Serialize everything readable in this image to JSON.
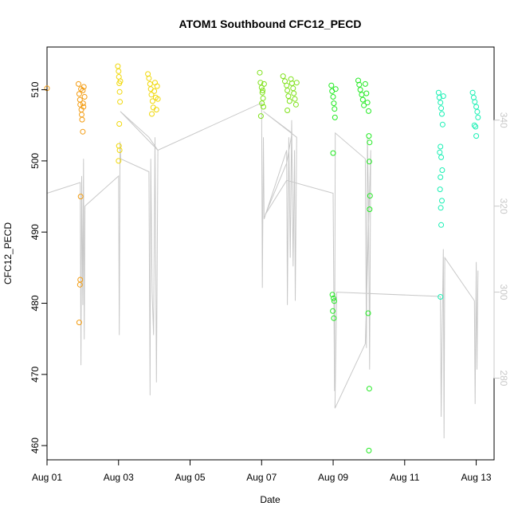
{
  "chart_data": {
    "type": "scatter",
    "title": "ATOM1 Southbound CFC12_PECD",
    "xlabel": "Date",
    "ylabel": "CFC12_PECD",
    "xlim": [
      0,
      12.5
    ],
    "ylim": [
      458,
      516
    ],
    "y_ticks": [
      460,
      470,
      480,
      490,
      500,
      510
    ],
    "x_ticks": [
      {
        "v": 0,
        "label": "Aug 01"
      },
      {
        "v": 2,
        "label": "Aug 03"
      },
      {
        "v": 4,
        "label": "Aug 05"
      },
      {
        "v": 6,
        "label": "Aug 07"
      },
      {
        "v": 8,
        "label": "Aug 09"
      },
      {
        "v": 10,
        "label": "Aug 11"
      },
      {
        "v": 12,
        "label": "Aug 13"
      }
    ],
    "right_axis": {
      "ylim": [
        261,
        357
      ],
      "ticks": [
        280,
        300,
        320,
        340
      ],
      "color": "#c8c8c8"
    },
    "grid": false,
    "legend": "none",
    "series": [
      {
        "color": "#f39c12",
        "points": [
          [
            0.0,
            510.2
          ],
          [
            0.88,
            510.8
          ],
          [
            0.9,
            509.4
          ],
          [
            0.92,
            508.6
          ],
          [
            0.93,
            507.9
          ],
          [
            0.95,
            510.1
          ],
          [
            0.96,
            507.2
          ],
          [
            0.97,
            506.5
          ],
          [
            0.98,
            505.8
          ],
          [
            1.0,
            509.9
          ],
          [
            1.01,
            508.1
          ],
          [
            1.02,
            507.6
          ],
          [
            1.03,
            510.4
          ],
          [
            1.05,
            509.0
          ],
          [
            0.94,
            495.0
          ],
          [
            0.93,
            483.3
          ],
          [
            0.92,
            482.6
          ],
          [
            0.9,
            477.3
          ],
          [
            1.0,
            504.1
          ]
        ]
      },
      {
        "color": "#f1d80a",
        "points": [
          [
            1.98,
            513.3
          ],
          [
            2.0,
            512.6
          ],
          [
            2.01,
            511.8
          ],
          [
            2.02,
            510.9
          ],
          [
            2.03,
            509.7
          ],
          [
            2.04,
            508.3
          ],
          [
            2.05,
            511.2
          ],
          [
            2.02,
            505.2
          ],
          [
            2.01,
            502.1
          ],
          [
            2.03,
            501.5
          ],
          [
            2.0,
            500.0
          ],
          [
            2.82,
            512.2
          ],
          [
            2.85,
            511.6
          ],
          [
            2.88,
            510.8
          ],
          [
            2.9,
            510.1
          ],
          [
            2.92,
            509.3
          ],
          [
            2.95,
            508.4
          ],
          [
            2.97,
            507.5
          ],
          [
            3.0,
            509.8
          ],
          [
            3.02,
            511.0
          ],
          [
            3.04,
            508.9
          ],
          [
            3.06,
            507.2
          ],
          [
            3.08,
            510.5
          ],
          [
            3.1,
            508.7
          ],
          [
            2.93,
            506.6
          ]
        ]
      },
      {
        "color": "#7fe21a",
        "points": [
          [
            5.95,
            512.4
          ],
          [
            5.97,
            511.0
          ],
          [
            6.0,
            510.3
          ],
          [
            6.02,
            509.6
          ],
          [
            6.04,
            508.8
          ],
          [
            6.05,
            507.6
          ],
          [
            6.07,
            510.8
          ],
          [
            5.98,
            506.3
          ],
          [
            6.01,
            508.1
          ],
          [
            6.03,
            509.9
          ],
          [
            6.6,
            511.9
          ],
          [
            6.65,
            511.2
          ],
          [
            6.7,
            510.6
          ],
          [
            6.72,
            509.9
          ],
          [
            6.75,
            509.1
          ],
          [
            6.78,
            508.4
          ],
          [
            6.82,
            511.5
          ],
          [
            6.85,
            510.9
          ],
          [
            6.88,
            510.2
          ],
          [
            6.9,
            509.5
          ],
          [
            6.93,
            508.7
          ],
          [
            6.96,
            507.9
          ],
          [
            6.98,
            511.0
          ],
          [
            6.72,
            507.1
          ]
        ]
      },
      {
        "color": "#21ea21",
        "points": [
          [
            7.95,
            510.6
          ],
          [
            7.97,
            509.8
          ],
          [
            8.0,
            509.0
          ],
          [
            8.02,
            508.1
          ],
          [
            8.04,
            507.3
          ],
          [
            8.05,
            506.1
          ],
          [
            8.07,
            510.1
          ],
          [
            8.0,
            501.1
          ],
          [
            7.98,
            481.2
          ],
          [
            8.01,
            480.7
          ],
          [
            8.03,
            480.3
          ],
          [
            7.99,
            478.9
          ],
          [
            8.02,
            477.9
          ],
          [
            8.7,
            511.3
          ],
          [
            8.73,
            510.7
          ],
          [
            8.76,
            510.0
          ],
          [
            8.8,
            509.3
          ],
          [
            8.83,
            508.6
          ],
          [
            8.86,
            507.8
          ],
          [
            8.9,
            510.8
          ],
          [
            8.93,
            509.5
          ],
          [
            8.96,
            508.2
          ],
          [
            8.99,
            507.0
          ],
          [
            9.0,
            503.5
          ],
          [
            9.02,
            502.6
          ],
          [
            9.01,
            499.9
          ],
          [
            9.03,
            495.1
          ],
          [
            9.02,
            493.2
          ],
          [
            8.98,
            478.6
          ],
          [
            9.01,
            468.0
          ],
          [
            9.0,
            459.3
          ]
        ]
      },
      {
        "color": "#19f0b4",
        "points": [
          [
            10.95,
            509.6
          ],
          [
            10.97,
            508.9
          ],
          [
            11.0,
            508.2
          ],
          [
            11.02,
            507.4
          ],
          [
            11.04,
            506.6
          ],
          [
            11.06,
            505.1
          ],
          [
            11.08,
            509.1
          ],
          [
            11.0,
            502.0
          ],
          [
            10.98,
            501.2
          ],
          [
            11.02,
            500.5
          ],
          [
            11.05,
            498.7
          ],
          [
            11.0,
            497.7
          ],
          [
            10.99,
            496.0
          ],
          [
            11.04,
            494.4
          ],
          [
            11.01,
            493.4
          ],
          [
            11.02,
            491.0
          ],
          [
            11.0,
            480.9
          ],
          [
            11.9,
            509.6
          ],
          [
            11.93,
            508.9
          ],
          [
            11.96,
            508.3
          ],
          [
            12.0,
            507.6
          ],
          [
            12.03,
            506.9
          ],
          [
            12.05,
            506.1
          ],
          [
            11.95,
            505.0
          ],
          [
            11.98,
            504.8
          ],
          [
            12.0,
            503.5
          ]
        ]
      }
    ],
    "trace": {
      "color": "#c8c8c8",
      "values": [
        [
          0.0,
          323.0
        ],
        [
          0.93,
          325.5
        ],
        [
          0.95,
          283.0
        ],
        [
          0.97,
          327.0
        ],
        [
          1.0,
          297.0
        ],
        [
          1.02,
          331.0
        ],
        [
          1.04,
          289.0
        ],
        [
          1.06,
          320.0
        ],
        [
          2.0,
          327.0
        ],
        [
          2.02,
          290.0
        ],
        [
          2.04,
          335.0
        ],
        [
          2.06,
          331.0
        ],
        [
          2.85,
          328.0
        ],
        [
          2.88,
          276.0
        ],
        [
          2.9,
          331.0
        ],
        [
          2.94,
          300.0
        ],
        [
          2.98,
          290.0
        ],
        [
          3.02,
          336.0
        ],
        [
          3.06,
          279.0
        ],
        [
          3.1,
          333.0
        ],
        [
          2.05,
          342.0
        ],
        [
          2.85,
          336.0
        ],
        [
          3.1,
          333.0
        ],
        [
          6.0,
          344.0
        ],
        [
          6.02,
          301.0
        ],
        [
          6.05,
          336.0
        ],
        [
          6.07,
          317.0
        ],
        [
          6.7,
          333.0
        ],
        [
          6.72,
          297.0
        ],
        [
          6.76,
          336.0
        ],
        [
          6.8,
          308.0
        ],
        [
          6.84,
          340.0
        ],
        [
          6.88,
          306.0
        ],
        [
          6.92,
          333.0
        ],
        [
          6.94,
          298.0
        ],
        [
          6.98,
          336.0
        ],
        [
          6.05,
          342.0
        ],
        [
          6.85,
          337.0
        ],
        [
          6.7,
          330.0
        ],
        [
          6.1,
          318.0
        ],
        [
          6.7,
          326.0
        ],
        [
          8.0,
          323.0
        ],
        [
          8.02,
          300.0
        ],
        [
          8.04,
          277.0
        ],
        [
          8.06,
          337.0
        ],
        [
          8.9,
          331.0
        ],
        [
          8.93,
          287.0
        ],
        [
          8.96,
          336.0
        ],
        [
          8.99,
          319.0
        ],
        [
          9.02,
          282.0
        ],
        [
          9.05,
          333.0
        ],
        [
          8.9,
          288.0
        ],
        [
          8.05,
          273.0
        ],
        [
          8.1,
          300.0
        ],
        [
          11.0,
          299.0
        ],
        [
          11.02,
          271.0
        ],
        [
          11.05,
          292.0
        ],
        [
          11.08,
          310.0
        ],
        [
          11.1,
          266.0
        ],
        [
          11.12,
          308.0
        ],
        [
          11.95,
          298.0
        ],
        [
          11.97,
          274.0
        ],
        [
          12.0,
          307.0
        ],
        [
          12.02,
          282.0
        ],
        [
          12.05,
          305.0
        ]
      ]
    }
  }
}
